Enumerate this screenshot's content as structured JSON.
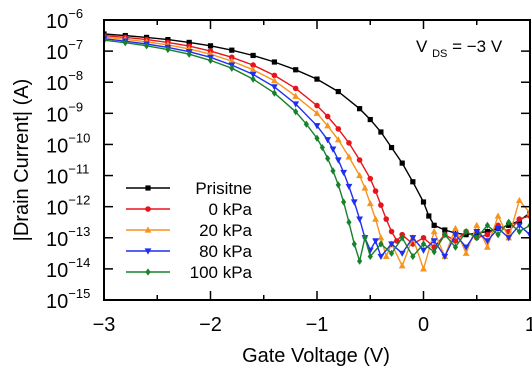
{
  "chart_data": {
    "type": "line",
    "title": "",
    "xlabel": "Gate Voltage (V)",
    "ylabel": "|Drain Current| (A)",
    "xlim": [
      -3,
      1
    ],
    "ylim_exponent": [
      -15,
      -6
    ],
    "yscale": "log",
    "grid": false,
    "legend_position": "lower-left",
    "annotation": {
      "prefix": "V",
      "subscript": "DS",
      "suffix": " = −3 V"
    },
    "x_ticks": [
      {
        "value": -3,
        "label": "−3"
      },
      {
        "value": -2,
        "label": "−2"
      },
      {
        "value": -1,
        "label": "−1"
      },
      {
        "value": 0,
        "label": "0"
      },
      {
        "value": 1,
        "label": "1"
      }
    ],
    "y_ticks": [
      {
        "exp": -6,
        "base": "10",
        "sup": "−6"
      },
      {
        "exp": -7,
        "base": "10",
        "sup": "−7"
      },
      {
        "exp": -8,
        "base": "10",
        "sup": "−8"
      },
      {
        "exp": -9,
        "base": "10",
        "sup": "−9"
      },
      {
        "exp": -10,
        "base": "10",
        "sup": "−10"
      },
      {
        "exp": -11,
        "base": "10",
        "sup": "−11"
      },
      {
        "exp": -12,
        "base": "10",
        "sup": "−12"
      },
      {
        "exp": -13,
        "base": "10",
        "sup": "−13"
      },
      {
        "exp": -14,
        "base": "10",
        "sup": "−14"
      },
      {
        "exp": -15,
        "base": "10",
        "sup": "−15"
      }
    ],
    "series": [
      {
        "name": "Prisitne",
        "color": "#000000",
        "marker": "square",
        "x": [
          -3.0,
          -2.8,
          -2.6,
          -2.4,
          -2.2,
          -2.0,
          -1.8,
          -1.6,
          -1.4,
          -1.2,
          -1.0,
          -0.8,
          -0.6,
          -0.5,
          -0.4,
          -0.3,
          -0.2,
          -0.1,
          0.0,
          0.05,
          0.1,
          0.2,
          0.3,
          0.4,
          0.5,
          0.6,
          0.7,
          0.8,
          0.9,
          1.0
        ],
        "y_log10": [
          -6.45,
          -6.5,
          -6.56,
          -6.63,
          -6.72,
          -6.83,
          -6.97,
          -7.14,
          -7.35,
          -7.6,
          -7.9,
          -8.3,
          -8.85,
          -9.2,
          -9.6,
          -10.1,
          -10.6,
          -11.2,
          -11.85,
          -12.3,
          -12.6,
          -12.75,
          -12.85,
          -12.9,
          -12.85,
          -12.8,
          -12.7,
          -12.6,
          -12.45,
          -12.2
        ]
      },
      {
        "name": "0 kPa",
        "color": "#e8141b",
        "marker": "circle",
        "x": [
          -3.0,
          -2.8,
          -2.6,
          -2.4,
          -2.2,
          -2.0,
          -1.8,
          -1.6,
          -1.4,
          -1.2,
          -1.0,
          -0.9,
          -0.8,
          -0.7,
          -0.6,
          -0.5,
          -0.45,
          -0.4,
          -0.35,
          -0.3,
          -0.25,
          -0.2,
          -0.1,
          0.0,
          0.1,
          0.2,
          0.3,
          0.4,
          0.5,
          0.6,
          0.7,
          0.8,
          0.9,
          1.0
        ],
        "y_log10": [
          -6.5,
          -6.56,
          -6.63,
          -6.72,
          -6.84,
          -7.0,
          -7.2,
          -7.45,
          -7.78,
          -8.2,
          -8.75,
          -9.1,
          -9.5,
          -9.95,
          -10.5,
          -11.1,
          -11.5,
          -11.95,
          -12.4,
          -12.8,
          -13.1,
          -12.9,
          -13.2,
          -13.0,
          -13.3,
          -12.9,
          -13.1,
          -12.8,
          -13.0,
          -12.9,
          -12.6,
          -12.8,
          -12.4,
          -12.3
        ]
      },
      {
        "name": "20 kPa",
        "color": "#f7941d",
        "marker": "triangle-up",
        "x": [
          -3.0,
          -2.8,
          -2.6,
          -2.4,
          -2.2,
          -2.0,
          -1.8,
          -1.6,
          -1.4,
          -1.2,
          -1.0,
          -0.9,
          -0.8,
          -0.7,
          -0.6,
          -0.55,
          -0.5,
          -0.45,
          -0.4,
          -0.35,
          -0.3,
          -0.2,
          -0.1,
          0.0,
          0.1,
          0.2,
          0.3,
          0.4,
          0.5,
          0.6,
          0.7,
          0.8,
          0.9,
          1.0
        ],
        "y_log10": [
          -6.55,
          -6.62,
          -6.7,
          -6.8,
          -6.93,
          -7.1,
          -7.32,
          -7.6,
          -7.95,
          -8.45,
          -9.0,
          -9.4,
          -9.85,
          -10.4,
          -11.0,
          -11.4,
          -11.9,
          -12.4,
          -13.0,
          -13.6,
          -13.2,
          -13.9,
          -13.0,
          -14.0,
          -12.8,
          -13.6,
          -12.7,
          -13.5,
          -12.6,
          -13.3,
          -12.3,
          -13.0,
          -11.8,
          -12.2
        ]
      },
      {
        "name": "80 kPa",
        "color": "#1f2ff0",
        "marker": "triangle-down",
        "x": [
          -3.0,
          -2.8,
          -2.6,
          -2.4,
          -2.2,
          -2.0,
          -1.8,
          -1.6,
          -1.4,
          -1.2,
          -1.0,
          -0.9,
          -0.85,
          -0.8,
          -0.75,
          -0.7,
          -0.65,
          -0.6,
          -0.55,
          -0.5,
          -0.45,
          -0.4,
          -0.3,
          -0.2,
          -0.1,
          0.0,
          0.1,
          0.2,
          0.3,
          0.4,
          0.5,
          0.6,
          0.7,
          0.8,
          0.9,
          1.0
        ],
        "y_log10": [
          -6.6,
          -6.68,
          -6.77,
          -6.88,
          -7.02,
          -7.2,
          -7.45,
          -7.75,
          -8.15,
          -8.7,
          -9.4,
          -9.85,
          -10.15,
          -10.5,
          -10.9,
          -11.35,
          -11.85,
          -12.4,
          -13.0,
          -13.4,
          -13.1,
          -13.6,
          -13.2,
          -13.5,
          -13.0,
          -13.4,
          -13.1,
          -13.6,
          -12.9,
          -13.3,
          -12.8,
          -13.1,
          -12.7,
          -13.0,
          -12.6,
          -12.9
        ]
      },
      {
        "name": "100 kPa",
        "color": "#16822b",
        "marker": "diamond",
        "x": [
          -3.0,
          -2.8,
          -2.6,
          -2.4,
          -2.2,
          -2.0,
          -1.8,
          -1.6,
          -1.4,
          -1.2,
          -1.1,
          -1.0,
          -0.95,
          -0.9,
          -0.85,
          -0.8,
          -0.75,
          -0.7,
          -0.65,
          -0.6,
          -0.55,
          -0.5,
          -0.4,
          -0.3,
          -0.2,
          -0.1,
          0.0,
          0.1,
          0.2,
          0.3,
          0.4,
          0.5,
          0.6,
          0.7,
          0.8,
          0.9,
          1.0
        ],
        "y_log10": [
          -6.65,
          -6.73,
          -6.83,
          -6.95,
          -7.1,
          -7.3,
          -7.55,
          -7.9,
          -8.35,
          -8.95,
          -9.35,
          -9.8,
          -10.1,
          -10.45,
          -10.85,
          -11.3,
          -11.85,
          -12.5,
          -13.2,
          -13.75,
          -13.0,
          -13.6,
          -13.2,
          -13.5,
          -13.0,
          -13.6,
          -13.2,
          -13.45,
          -12.9,
          -13.3,
          -12.8,
          -13.0,
          -12.6,
          -12.9,
          -12.5,
          -12.8,
          -12.6
        ]
      }
    ]
  }
}
